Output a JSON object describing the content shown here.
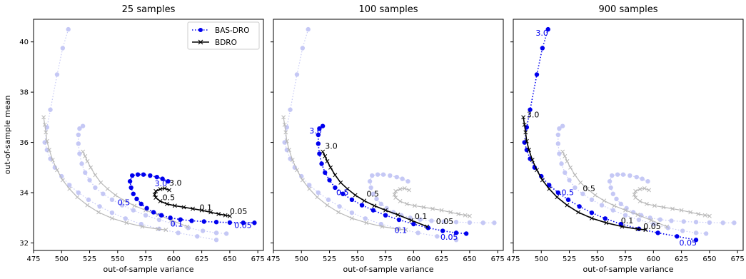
{
  "chart_data": {
    "type": "line",
    "xlabel": "out-of-sample variance",
    "ylabel": "out-of-sample mean",
    "xlim": [
      475,
      680
    ],
    "ylim": [
      31.7,
      40.9
    ],
    "xticks": [
      475,
      500,
      525,
      550,
      575,
      600,
      625,
      650,
      675
    ],
    "yticks": [
      32,
      34,
      36,
      38,
      40
    ],
    "legend": {
      "position": "top-right",
      "entries": [
        "BAS-DRO",
        "BDRO"
      ]
    },
    "colors": {
      "BAS-DRO": "#0000ee",
      "BDRO": "#000000",
      "faded-BAS-DRO": "#c5c8f5",
      "faded-BDRO": "#b8b8b8"
    },
    "panels": [
      {
        "title": "25 samples",
        "series": [
          {
            "name": "BAS-DRO",
            "marker": "circle",
            "style": "dotted",
            "x": [
              595,
              590,
              585,
              579,
              573,
              568,
              563,
              561,
              562,
              564,
              567,
              571,
              576,
              582,
              589,
              597,
              606,
              616,
              627,
              638,
              650,
              662,
              672
            ],
            "y": [
              34.45,
              34.55,
              34.62,
              34.68,
              34.72,
              34.72,
              34.68,
              34.45,
              34.2,
              33.95,
              33.75,
              33.55,
              33.38,
              33.22,
              33.1,
              33.0,
              32.93,
              32.88,
              32.85,
              32.83,
              32.81,
              32.8,
              32.8
            ]
          },
          {
            "name": "BDRO",
            "marker": "x",
            "style": "solid",
            "x": [
              596,
              592,
              588,
              584,
              583,
              584,
              588,
              594,
              601,
              609,
              617,
              625,
              633,
              640,
              646,
              650
            ],
            "y": [
              34.1,
              34.17,
              34.14,
              34.06,
              33.92,
              33.8,
              33.66,
              33.55,
              33.48,
              33.42,
              33.36,
              33.3,
              33.22,
              33.15,
              33.1,
              33.07
            ]
          }
        ],
        "annotations": [
          {
            "text": "3.0",
            "x": 583,
            "y": 34.25,
            "color": "#0000ee"
          },
          {
            "text": "0.5",
            "x": 550,
            "y": 33.5,
            "color": "#0000ee"
          },
          {
            "text": "0.1",
            "x": 597,
            "y": 32.65,
            "color": "#0000ee"
          },
          {
            "text": "0.05",
            "x": 654,
            "y": 32.6,
            "color": "#0000ee"
          },
          {
            "text": "3.0",
            "x": 596,
            "y": 34.28,
            "color": "#000000"
          },
          {
            "text": "0.5",
            "x": 590,
            "y": 33.7,
            "color": "#000000"
          },
          {
            "text": "0.1",
            "x": 623,
            "y": 33.3,
            "color": "#000000"
          },
          {
            "text": "0.05",
            "x": 650,
            "y": 33.15,
            "color": "#000000"
          }
        ]
      },
      {
        "title": "100 samples",
        "series": [
          {
            "name": "BAS-DRO",
            "marker": "circle",
            "style": "dotted",
            "x": [
              519,
              516,
              515,
              515,
              516,
              518,
              521,
              525,
              530,
              537,
              545,
              554,
              564,
              575,
              587,
              600,
              613,
              626,
              638,
              647
            ],
            "y": [
              36.65,
              36.55,
              36.3,
              35.95,
              35.55,
              35.15,
              34.8,
              34.5,
              34.2,
              33.95,
              33.72,
              33.5,
              33.3,
              33.1,
              32.92,
              32.75,
              32.6,
              32.48,
              32.4,
              32.37
            ]
          },
          {
            "name": "BDRO",
            "marker": "x",
            "style": "solid",
            "x": [
              519,
              521,
              523,
              526,
              530,
              535,
              541,
              548,
              556,
              565,
              575,
              586,
              598,
              612
            ],
            "y": [
              35.63,
              35.45,
              35.25,
              35.0,
              34.7,
              34.4,
              34.15,
              33.9,
              33.68,
              33.48,
              33.3,
              33.12,
              32.9,
              32.65
            ]
          }
        ],
        "annotations": [
          {
            "text": "3.0",
            "x": 507,
            "y": 36.35,
            "color": "#0000ee"
          },
          {
            "text": "0.5",
            "x": 531,
            "y": 33.9,
            "color": "#0000ee"
          },
          {
            "text": "0.1",
            "x": 583,
            "y": 32.4,
            "color": "#0000ee"
          },
          {
            "text": "0.05",
            "x": 624,
            "y": 32.12,
            "color": "#0000ee"
          },
          {
            "text": "3.0",
            "x": 521,
            "y": 35.75,
            "color": "#000000"
          },
          {
            "text": "0.5",
            "x": 558,
            "y": 33.85,
            "color": "#000000"
          },
          {
            "text": "0.1",
            "x": 601,
            "y": 32.95,
            "color": "#000000"
          },
          {
            "text": "0.05",
            "x": 620,
            "y": 32.75,
            "color": "#000000"
          }
        ]
      },
      {
        "title": "900 samples",
        "series": [
          {
            "name": "BAS-DRO",
            "marker": "circle",
            "style": "dotted",
            "x": [
              506,
              501,
              496,
              490,
              487,
              485,
              487,
              490,
              494,
              500,
              507,
              515,
              524,
              534,
              545,
              557,
              571,
              587,
              604,
              621,
              638
            ],
            "y": [
              40.5,
              39.75,
              38.7,
              37.3,
              36.6,
              36.0,
              35.7,
              35.35,
              35.0,
              34.65,
              34.3,
              34.0,
              33.72,
              33.45,
              33.2,
              32.97,
              32.75,
              32.56,
              32.4,
              32.26,
              32.12
            ]
          },
          {
            "name": "BDRO",
            "marker": "x",
            "style": "solid",
            "x": [
              484,
              485,
              486,
              487,
              489,
              492,
              496,
              501,
              507,
              514,
              523,
              533,
              545,
              558,
              572,
              586,
              593
            ],
            "y": [
              37.0,
              36.7,
              36.4,
              36.05,
              35.7,
              35.3,
              34.9,
              34.5,
              34.15,
              33.82,
              33.5,
              33.22,
              32.98,
              32.8,
              32.65,
              32.55,
              32.52
            ]
          }
        ],
        "annotations": [
          {
            "text": "3.0",
            "x": 495,
            "y": 40.25,
            "color": "#0000ee"
          },
          {
            "text": "0.5",
            "x": 518,
            "y": 33.9,
            "color": "#0000ee"
          },
          {
            "text": "0.05",
            "x": 623,
            "y": 31.9,
            "color": "#0000ee"
          },
          {
            "text": "3.0",
            "x": 487,
            "y": 37.0,
            "color": "#000000"
          },
          {
            "text": "0.5",
            "x": 537,
            "y": 34.05,
            "color": "#000000"
          },
          {
            "text": "0.1",
            "x": 571,
            "y": 32.78,
            "color": "#000000"
          },
          {
            "text": "0.05",
            "x": 591,
            "y": 32.55,
            "color": "#000000"
          }
        ]
      }
    ]
  }
}
